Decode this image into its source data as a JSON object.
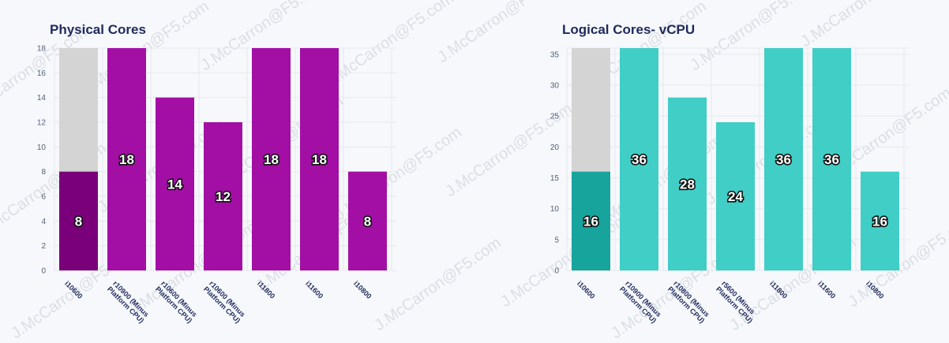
{
  "watermark": "J.McCarron@F5.com",
  "chart_data": [
    {
      "type": "bar",
      "title": "Physical Cores",
      "categories": [
        "i10600",
        "r10900 (Minus Platform CPU)",
        "r10600 (Minus Platform CPU)",
        "r10600 (Minus Platform CPU)",
        "i11800",
        "i11600",
        "i10800"
      ],
      "values": [
        8,
        18,
        14,
        12,
        18,
        18,
        8
      ],
      "background_values": [
        18,
        null,
        null,
        null,
        null,
        null,
        null
      ],
      "ylim": [
        0,
        18
      ],
      "yticks": [
        0,
        2,
        4,
        6,
        8,
        10,
        12,
        14,
        16,
        18
      ],
      "xlabel": "",
      "ylabel": "",
      "grid": true,
      "colors": {
        "bar": "#a30fa5",
        "highlight": "#7a007a",
        "background": "#d4d4d4"
      }
    },
    {
      "type": "bar",
      "title": "Logical Cores- vCPU",
      "categories": [
        "i10600",
        "r10900 (Minus Platform CPU)",
        "r10800 (Minus Platform CPU)",
        "r5600 (Minus Platform CPU)",
        "i11800",
        "i11600",
        "i10800"
      ],
      "values": [
        16,
        36,
        28,
        24,
        36,
        36,
        16
      ],
      "background_values": [
        36,
        null,
        null,
        null,
        null,
        null,
        null
      ],
      "ylim": [
        0,
        36
      ],
      "yticks": [
        0,
        5,
        10,
        15,
        20,
        25,
        30,
        35
      ],
      "xlabel": "",
      "ylabel": "",
      "grid": true,
      "colors": {
        "bar": "#40cec6",
        "highlight": "#17a49c",
        "background": "#d4d4d4"
      }
    }
  ]
}
